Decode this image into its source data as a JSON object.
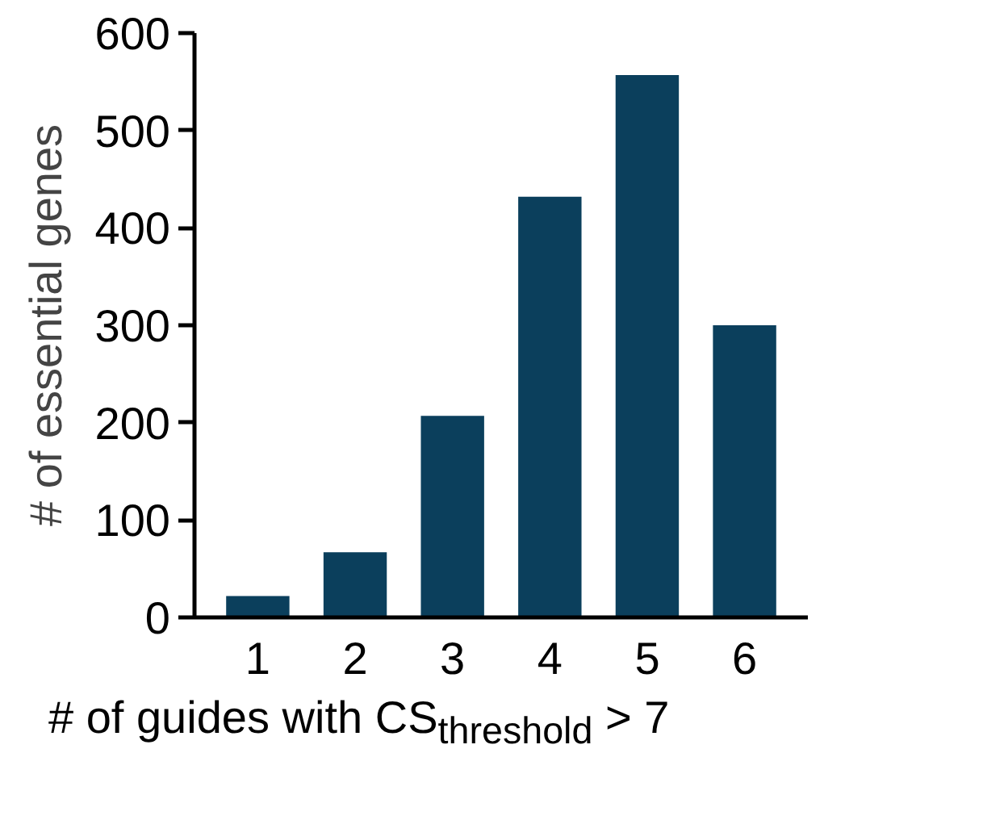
{
  "chart_data": {
    "type": "bar",
    "categories": [
      "1",
      "2",
      "3",
      "4",
      "5",
      "6"
    ],
    "values": [
      22,
      67,
      207,
      432,
      557,
      300
    ],
    "color": "#0b3f5c",
    "ylim": [
      0,
      600
    ],
    "yticks": [
      0,
      100,
      200,
      300,
      400,
      500,
      600
    ],
    "xlabel": "# of guides with CS$_{threshold}$ > 7",
    "ylabel": "# of essential genes",
    "grid": false
  }
}
